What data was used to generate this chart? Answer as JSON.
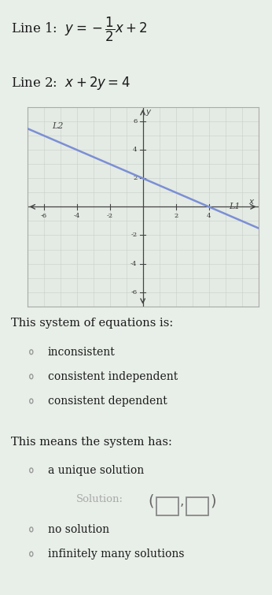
{
  "line_color": "#7b8fd4",
  "slope": -0.5,
  "intercept": 2,
  "xlim": [
    -7,
    7
  ],
  "ylim": [
    -7,
    7
  ],
  "xticks": [
    -6,
    -4,
    -2,
    2,
    4
  ],
  "yticks": [
    -6,
    -4,
    -2,
    2,
    4,
    6
  ],
  "grid_color": "#c8cfc8",
  "ax_bg": "#e4eae4",
  "outer_bg": "#e8eee8",
  "text_color": "#1a1a1a",
  "radio_color": "#999999",
  "axis_color": "#444444",
  "tick_label_color": "#333333",
  "solution_text_color": "#aaaaaa",
  "section1_title": "This system of equations is:",
  "radio_options_1": [
    "inconsistent",
    "consistent independent",
    "consistent dependent"
  ],
  "section2_title": "This means the system has:",
  "radio_options_2": [
    "a unique solution",
    "no solution",
    "infinitely many solutions"
  ],
  "solution_label": "Solution:"
}
